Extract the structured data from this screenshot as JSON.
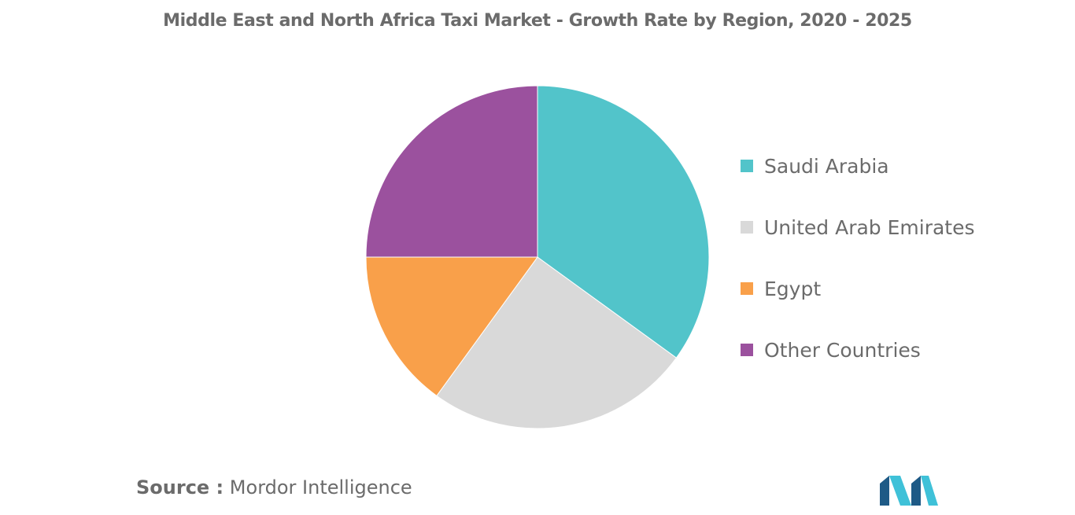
{
  "chart_data": {
    "type": "pie",
    "title": "Middle East and North Africa Taxi Market - Growth Rate by Region, 2020 - 2025",
    "categories": [
      "Saudi Arabia",
      "United Arab Emirates",
      "Egypt",
      "Other Countries"
    ],
    "values": [
      35,
      25,
      15,
      25
    ],
    "colors": [
      "#52c4ca",
      "#d9d9d9",
      "#f9a04a",
      "#9b519e"
    ],
    "legend": "right",
    "start_angle": "12 o'clock",
    "direction": "clockwise"
  },
  "source": {
    "label": "Source :",
    "text": "Mordor Intelligence"
  },
  "logo": {
    "icon": "mordor-intelligence-logo",
    "colors": [
      "#1e5a86",
      "#3fc1d8"
    ]
  }
}
